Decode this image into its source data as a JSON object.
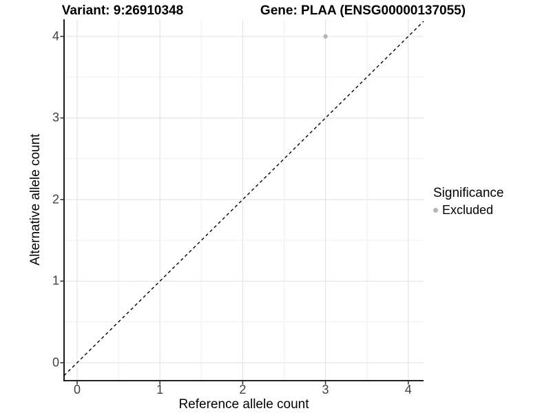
{
  "chart_data": {
    "type": "scatter",
    "title_left": "Variant: 9:26910348",
    "title_right": "Gene: PLAA (ENSG00000137055)",
    "xlabel": "Reference allele count",
    "ylabel": "Alternative allele count",
    "x_ticks": [
      0,
      1,
      2,
      3,
      4
    ],
    "y_ticks": [
      0,
      1,
      2,
      3,
      4
    ],
    "x_minor_ticks": [
      0.5,
      1.5,
      2.5,
      3.5
    ],
    "y_minor_ticks": [
      0.5,
      1.5,
      2.5,
      3.5
    ],
    "xlim": [
      -0.158,
      4.185
    ],
    "ylim": [
      -0.22,
      4.21
    ],
    "grid": true,
    "points": [
      {
        "x": 3,
        "y": 4,
        "series": "Excluded"
      }
    ],
    "reference_line": {
      "type": "identity",
      "style": "dashed",
      "color": "#000000"
    },
    "legend": {
      "title": "Significance",
      "position": "right",
      "items": [
        {
          "label": "Excluded",
          "color": "#b5b5b5"
        }
      ]
    },
    "colors": {
      "point_excluded": "#b5b5b5",
      "grid_major": "#e2e2e2",
      "grid_minor": "#f0f0f0",
      "axis_line": "#000000",
      "tick_mark": "#333333",
      "tick_text": "#404040",
      "background": "#ffffff"
    }
  }
}
